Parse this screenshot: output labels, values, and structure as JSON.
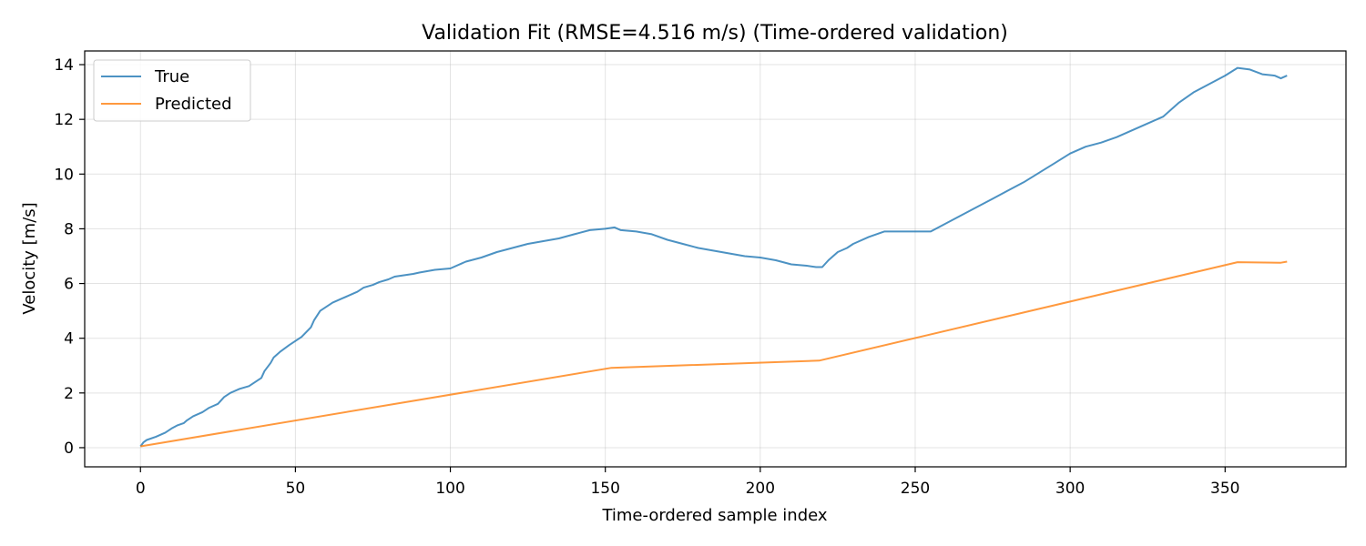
{
  "chart_data": {
    "type": "line",
    "title": "Validation Fit (RMSE=4.516 m/s) (Time-ordered validation)",
    "xlabel": "Time-ordered sample index",
    "ylabel": "Velocity [m/s]",
    "xlim": [
      -18,
      389
    ],
    "ylim": [
      -0.7,
      14.5
    ],
    "xticks": [
      0,
      50,
      100,
      150,
      200,
      250,
      300,
      350
    ],
    "yticks": [
      0,
      2,
      4,
      6,
      8,
      10,
      12,
      14
    ],
    "grid": true,
    "legend": "top-left",
    "series": [
      {
        "name": "True",
        "color": "#1f77b4",
        "x": [
          0,
          1,
          2,
          5,
          8,
          10,
          12,
          14,
          15,
          17,
          20,
          22,
          25,
          27,
          29,
          32,
          35,
          37,
          39,
          40,
          41,
          42,
          43,
          45,
          48,
          50,
          52,
          55,
          56,
          58,
          60,
          62,
          65,
          67,
          70,
          72,
          75,
          77,
          80,
          82,
          85,
          88,
          90,
          95,
          100,
          105,
          110,
          115,
          120,
          125,
          130,
          135,
          140,
          145,
          150,
          153,
          155,
          160,
          165,
          170,
          175,
          180,
          185,
          190,
          195,
          200,
          205,
          210,
          215,
          218,
          220,
          222,
          225,
          228,
          230,
          235,
          240,
          245,
          250,
          255,
          260,
          265,
          270,
          275,
          280,
          285,
          290,
          295,
          300,
          305,
          310,
          315,
          320,
          325,
          330,
          335,
          340,
          345,
          350,
          354,
          358,
          362,
          366,
          368,
          370
        ],
        "y": [
          0.05,
          0.2,
          0.28,
          0.4,
          0.55,
          0.7,
          0.82,
          0.9,
          1.0,
          1.15,
          1.3,
          1.45,
          1.6,
          1.85,
          2.0,
          2.15,
          2.25,
          2.4,
          2.55,
          2.8,
          2.95,
          3.1,
          3.3,
          3.5,
          3.75,
          3.9,
          4.05,
          4.4,
          4.65,
          5.0,
          5.15,
          5.3,
          5.45,
          5.55,
          5.7,
          5.85,
          5.95,
          6.05,
          6.15,
          6.25,
          6.3,
          6.35,
          6.4,
          6.5,
          6.55,
          6.8,
          6.95,
          7.15,
          7.3,
          7.45,
          7.55,
          7.65,
          7.8,
          7.95,
          8.0,
          8.05,
          7.95,
          7.9,
          7.8,
          7.6,
          7.45,
          7.3,
          7.2,
          7.1,
          7.0,
          6.95,
          6.85,
          6.7,
          6.65,
          6.6,
          6.6,
          6.85,
          7.15,
          7.3,
          7.45,
          7.7,
          7.9,
          7.9,
          7.9,
          7.9,
          8.2,
          8.5,
          8.8,
          9.1,
          9.4,
          9.7,
          10.05,
          10.4,
          10.75,
          11.0,
          11.15,
          11.35,
          11.6,
          11.85,
          12.1,
          12.6,
          13.0,
          13.3,
          13.6,
          13.88,
          13.82,
          13.65,
          13.6,
          13.5,
          13.6
        ]
      },
      {
        "name": "Predicted",
        "color": "#ff7f0e",
        "x": [
          0,
          152,
          219,
          354,
          368,
          370
        ],
        "y": [
          0.05,
          2.92,
          3.18,
          6.78,
          6.76,
          6.8
        ]
      }
    ]
  }
}
